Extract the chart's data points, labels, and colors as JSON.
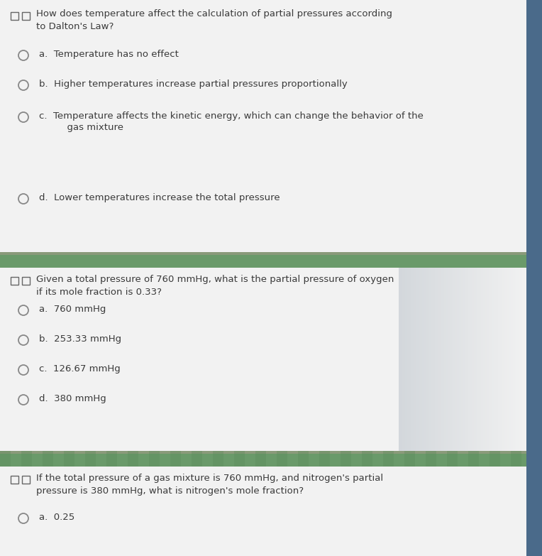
{
  "fig_width": 7.64,
  "fig_height": 7.83,
  "dpi": 100,
  "bg_color": "#d0d0d0",
  "section_bg": "#e8e8e8",
  "card_bg": "#f2f2f2",
  "right_sidebar_color": "#4a6a8a",
  "divider_top_color": "#888877",
  "divider_main_color": "#6a9a6a",
  "divider_stripe_color": "#7ab07a",
  "text_color": "#3a3a3a",
  "icon_color": "#666666",
  "circle_color": "#888888",
  "q1": {
    "question_line1": "How does temperature affect the calculation of partial pressures according",
    "question_line2": "to Dalton's Law?",
    "options": [
      "a.  Temperature has no effect",
      "b.  Higher temperatures increase partial pressures proportionally",
      "c.  Temperature affects the kinetic energy, which can change the behavior of the",
      "      gas mixture",
      "d.  Lower temperatures increase the total pressure"
    ]
  },
  "q2": {
    "question_line1": "Given a total pressure of 760 mmHg, what is the partial pressure of oxygen",
    "question_line2": "if its mole fraction is 0.33?",
    "options": [
      "a.  760 mmHg",
      "b.  253.33 mmHg",
      "c.  126.67 mmHg",
      "d.  380 mmHg"
    ]
  },
  "q3": {
    "question_line1": "If the total pressure of a gas mixture is 760 mmHg, and nitrogen's partial",
    "question_line2": "pressure is 380 mmHg, what is nitrogen's mole fraction?",
    "partial_option": "a.  0.25"
  }
}
